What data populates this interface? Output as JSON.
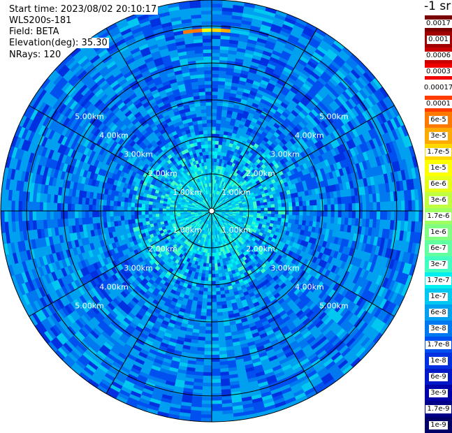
{
  "info": {
    "start_time": "Start time: 2023/08/02 20:10:17",
    "instrument": "WLS200s-181",
    "field": "Field: BETA",
    "elevation": "Elevation(deg): 35.30",
    "nrays": "NRays: 120"
  },
  "chart_data": {
    "type": "heatmap",
    "projection": "polar-ppi",
    "field": "BETA",
    "unit": "-1 sr",
    "n_rays": 120,
    "elevation_deg": 35.3,
    "range_rings_km": [
      1.0,
      2.0,
      3.0,
      4.0,
      5.0
    ],
    "max_range_km": 5.7,
    "ring_labels": [
      "1.00km",
      "2.00km",
      "3.00km",
      "4.00km",
      "5.00km"
    ],
    "radial_spokes_deg": [
      0,
      30,
      60,
      90,
      120,
      150,
      180,
      210,
      240,
      270,
      300,
      330
    ],
    "typical_value": "1e-8 to 1e-7",
    "hotspot": {
      "azimuth_deg": [
        -10,
        5
      ],
      "range_km": [
        4.8,
        4.95
      ],
      "value": "1e-5 to 3e-5"
    },
    "colorbar": {
      "labels": [
        "0.0017",
        "0.001",
        "0.0006",
        "0.0003",
        "0.00017",
        "0.0001",
        "6e-5",
        "3e-5",
        "1.7e-5",
        "1e-5",
        "6e-6",
        "3e-6",
        "1.7e-6",
        "1e-6",
        "6e-7",
        "3e-7",
        "1.7e-7",
        "1e-7",
        "6e-8",
        "3e-8",
        "1.7e-8",
        "1e-8",
        "6e-9",
        "3e-9",
        "1.7e-9",
        "1e-9"
      ],
      "colors": [
        "#7a0000",
        "#a00000",
        "#c80000",
        "#f00000",
        "#ffffff",
        "#ff3c00",
        "#ff7800",
        "#ffaa00",
        "#ffd800",
        "#ffff00",
        "#e6ff18",
        "#c0ff40",
        "#a0ff60",
        "#80ff80",
        "#60ffa0",
        "#40ffc0",
        "#00f0f0",
        "#00c8f0",
        "#00a0f0",
        "#0078f0",
        "#0050f0",
        "#0030e0",
        "#0018c8",
        "#0000a8",
        "#000088",
        "#000068"
      ]
    }
  }
}
